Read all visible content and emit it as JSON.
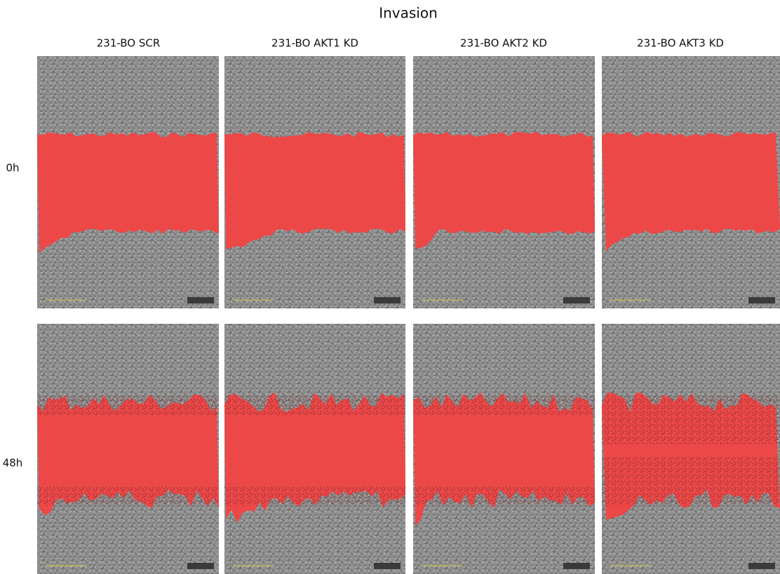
{
  "title": "Invasion",
  "columns": [
    "231-BO SCR",
    "231-BO AKT1 KD",
    "231-BO AKT2 KD",
    "231-BO AKT3 KD"
  ],
  "rows": [
    "0h",
    "48h"
  ]
}
